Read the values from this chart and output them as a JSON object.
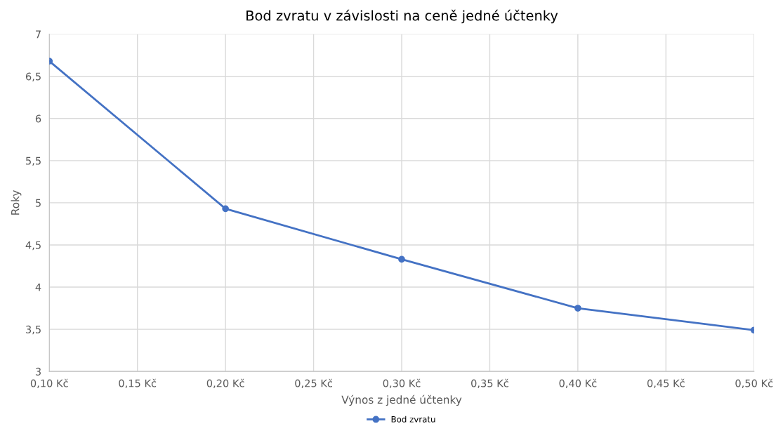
{
  "chart_data": {
    "type": "line",
    "title": "Bod zvratu v závislosti na ceně jedné účtenky",
    "xlabel": "Výnos z jedné účtenky",
    "ylabel": "Roky",
    "x": [
      0.1,
      0.2,
      0.3,
      0.4,
      0.5
    ],
    "series": [
      {
        "name": "Bod zvratu",
        "color": "#4472c4",
        "values": [
          6.68,
          4.93,
          4.33,
          3.75,
          3.49
        ]
      }
    ],
    "xlim": [
      0.1,
      0.5
    ],
    "xticks": [
      {
        "value": 0.1,
        "label": "0,10 Kč"
      },
      {
        "value": 0.15,
        "label": "0,15 Kč"
      },
      {
        "value": 0.2,
        "label": "0,20 Kč"
      },
      {
        "value": 0.25,
        "label": "0,25 Kč"
      },
      {
        "value": 0.3,
        "label": "0,30 Kč"
      },
      {
        "value": 0.35,
        "label": "0,35 Kč"
      },
      {
        "value": 0.4,
        "label": "0,40 Kč"
      },
      {
        "value": 0.45,
        "label": "0,45 Kč"
      },
      {
        "value": 0.5,
        "label": "0,50 Kč"
      }
    ],
    "ylim": [
      3,
      7
    ],
    "yticks": [
      3,
      {
        "value": 3.5,
        "label": "3,5"
      },
      4,
      {
        "value": 4.5,
        "label": "4,5"
      },
      5,
      {
        "value": 5.5,
        "label": "5,5"
      },
      6,
      {
        "value": 6.5,
        "label": "6,5"
      },
      7
    ],
    "grid": true,
    "legend": "bottom",
    "marker": "circle",
    "line_style": "solid"
  }
}
